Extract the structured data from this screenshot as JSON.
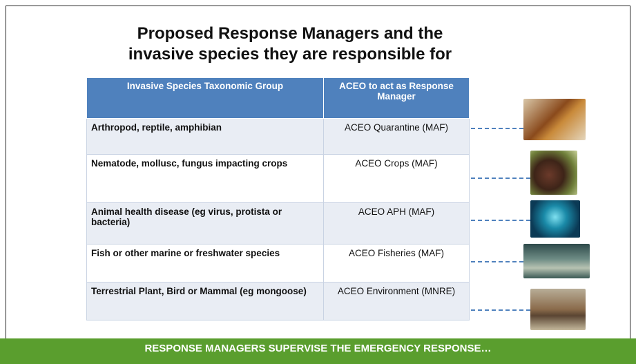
{
  "header": {
    "title": [
      "Proposed Response Managers and the",
      "invasive species they are responsible for"
    ]
  },
  "table": {
    "columns": [
      "Invasive Species Taxonomic Group",
      "ACEO to act as Response Manager"
    ],
    "rows": [
      [
        "Arthropod, reptile, amphibian",
        "ACEO Quarantine (MAF)"
      ],
      [
        "Nematode, mollusc, fungus impacting crops",
        "ACEO Crops (MAF)"
      ],
      [
        "Animal health disease (eg virus, protista or bacteria)",
        "ACEO APH (MAF)"
      ],
      [
        "Fish or other marine or freshwater species",
        "ACEO Fisheries (MAF)"
      ],
      [
        "Terrestrial Plant, Bird or Mammal (eg mongoose)",
        "ACEO Environment (MNRE)"
      ]
    ]
  },
  "footer": "RESPONSE MANAGERS SUPERVISE THE EMERGENCY RESPONSE…"
}
